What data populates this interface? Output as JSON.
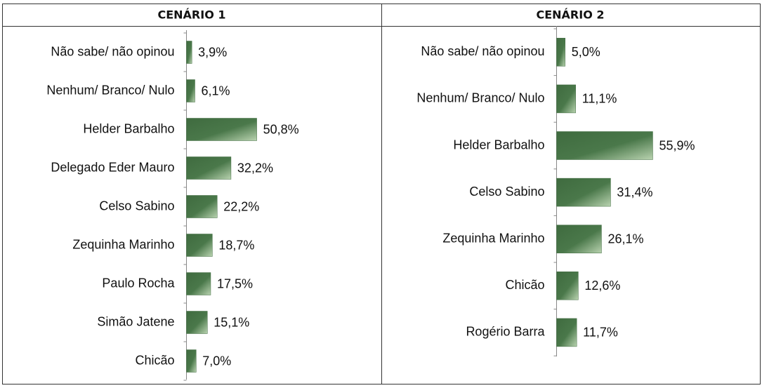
{
  "chart_data": [
    {
      "type": "bar",
      "orientation": "horizontal",
      "title": "CENÁRIO 1",
      "color": "#3f6b3f",
      "categories": [
        "Não sabe/ não opinou",
        "Nenhum/ Branco/ Nulo",
        "Helder Barbalho",
        "Delegado Eder Mauro",
        "Celso Sabino",
        "Zequinha Marinho",
        "Paulo Rocha",
        "Simão Jatene",
        "Chicão"
      ],
      "values": [
        3.9,
        6.1,
        50.8,
        32.2,
        22.2,
        18.7,
        17.5,
        15.1,
        7.0
      ],
      "value_labels": [
        "3,9%",
        "6,1%",
        "50,8%",
        "32,2%",
        "22,2%",
        "18,7%",
        "17,5%",
        "15,1%",
        "7,0%"
      ]
    },
    {
      "type": "bar",
      "orientation": "horizontal",
      "title": "CENÁRIO 2",
      "color": "#3f6b3f",
      "categories": [
        "Não sabe/ não opinou",
        "Nenhum/ Branco/ Nulo",
        "Helder Barbalho",
        "Celso Sabino",
        "Zequinha Marinho",
        "Chicão",
        "Rogério Barra"
      ],
      "values": [
        5.0,
        11.1,
        55.9,
        31.4,
        26.1,
        12.6,
        11.7
      ],
      "value_labels": [
        "5,0%",
        "11,1%",
        "55,9%",
        "31,4%",
        "26,1%",
        "12,6%",
        "11,7%"
      ]
    }
  ]
}
